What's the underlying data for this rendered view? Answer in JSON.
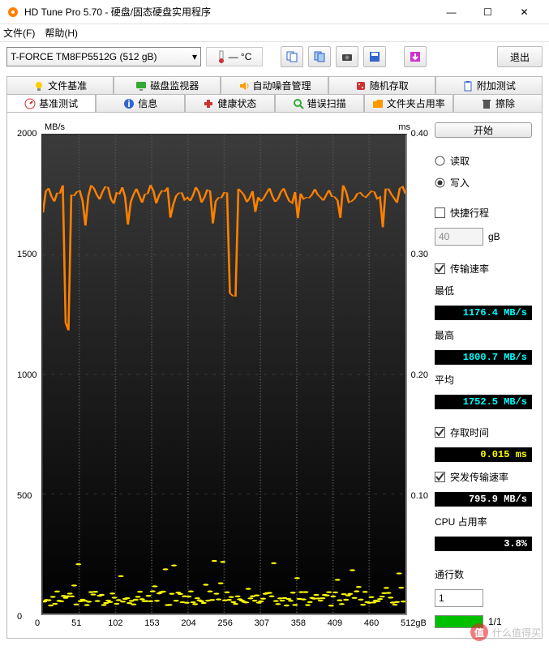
{
  "window": {
    "title": "HD Tune Pro 5.70 - 硬盘/固态硬盘实用程序",
    "min": "—",
    "max": "☐",
    "close": "✕"
  },
  "menu": {
    "file": "文件(F)",
    "help": "帮助(H)"
  },
  "toolbar": {
    "drive": "T-FORCE TM8FP5512G (512 gB)",
    "temp": "— °C",
    "exit": "退出"
  },
  "tabs_top": [
    {
      "icon": "lightbulb",
      "color": "#ffcc00",
      "label": "文件基准"
    },
    {
      "icon": "monitor",
      "color": "#33aa33",
      "label": "磁盘监视器"
    },
    {
      "icon": "speaker",
      "color": "#ff9900",
      "label": "自动噪音管理"
    },
    {
      "icon": "dice",
      "color": "#cc3333",
      "label": "随机存取"
    },
    {
      "icon": "clipboard",
      "color": "#3366cc",
      "label": "附加测试"
    }
  ],
  "tabs_bottom": [
    {
      "icon": "gauge",
      "color": "#cc3333",
      "label": "基准测试",
      "active": true
    },
    {
      "icon": "info",
      "color": "#3366cc",
      "label": "信息"
    },
    {
      "icon": "plus",
      "color": "#cc3333",
      "label": "健康状态"
    },
    {
      "icon": "search",
      "color": "#33aa33",
      "label": "错误扫描"
    },
    {
      "icon": "folder",
      "color": "#ff9900",
      "label": "文件夹占用率"
    },
    {
      "icon": "trash",
      "color": "#555555",
      "label": "擦除"
    }
  ],
  "chart": {
    "y_label_left": "MB/s",
    "y_label_right": "ms",
    "y_left_max": 2000,
    "y_left_ticks": [
      "2000",
      "1500",
      "1000",
      "500",
      "0"
    ],
    "y_right_ticks": [
      "0.40",
      "0.30",
      "0.20",
      "0.10"
    ],
    "x_ticks": [
      "0",
      "51",
      "102",
      "153",
      "204",
      "256",
      "307",
      "358",
      "409",
      "460",
      "512gB"
    ],
    "bg_top": "#3b3b3b",
    "bg_bottom": "#000000",
    "grid_color": "#555555",
    "line_color": "#ff8000",
    "access_color": "#ffff00",
    "line_avg_y": 1752,
    "line_min_y": 1176,
    "line_max_y": 1800,
    "access_avg_ms": 0.015
  },
  "controls": {
    "start": "开始",
    "read": "读取",
    "write": "写入",
    "short": "快捷行程",
    "short_val": "40",
    "short_unit": "gB",
    "transfer": "传输速率",
    "min_label": "最低",
    "min_val": "1176.4 MB/s",
    "max_label": "最高",
    "max_val": "1800.7 MB/s",
    "avg_label": "平均",
    "avg_val": "1752.5 MB/s",
    "access_label": "存取时间",
    "access_val": "0.015 ms",
    "burst_label": "突发传输速率",
    "burst_val": "795.9 MB/s",
    "cpu_label": "CPU 占用率",
    "cpu_val": "3.8%",
    "pass_label": "通行数",
    "pass_val": "1",
    "pass_prog": "1/1"
  },
  "watermark": "值(什么值得买"
}
